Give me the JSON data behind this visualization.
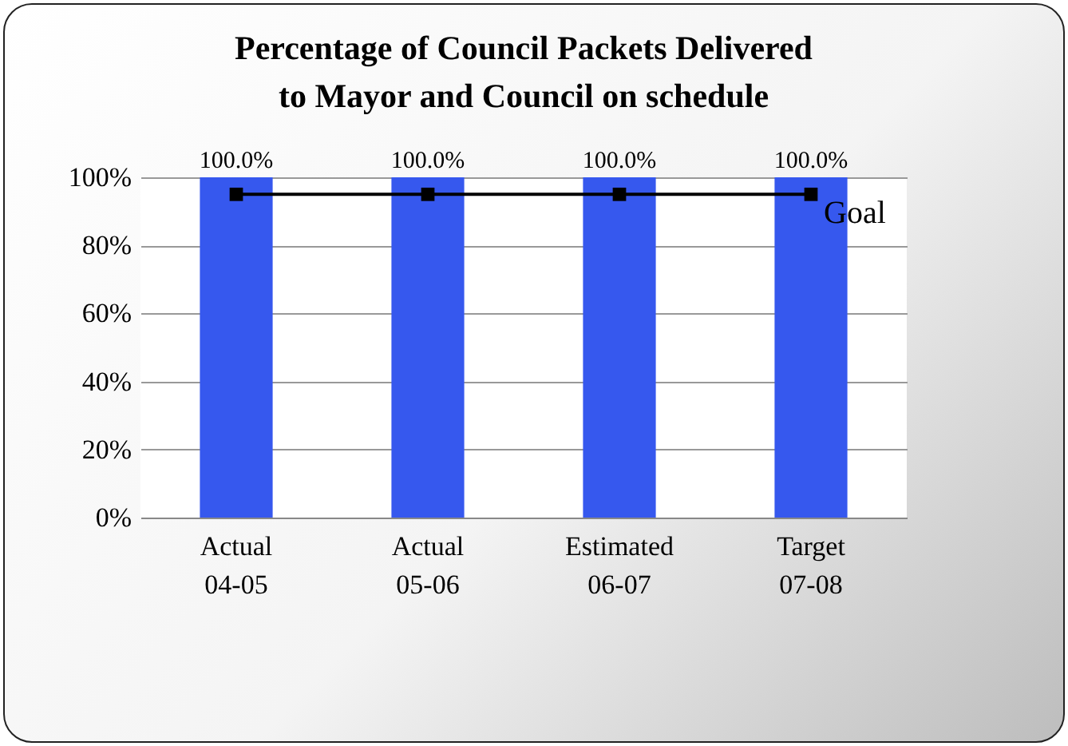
{
  "chart_data": {
    "type": "bar",
    "title": "Percentage of Council Packets Delivered to Mayor and Council on schedule",
    "categories": [
      "Actual\n04-05",
      "Actual\n05-06",
      "Estimated\n06-07",
      "Target\n07-08"
    ],
    "series": [
      {
        "color": "#3658ee",
        "values": [
          100,
          100,
          100,
          100
        ],
        "value_labels": [
          "100.0%",
          "100.0%",
          "100.0%",
          "100.0%"
        ]
      },
      {
        "type": "line",
        "name": "Goal",
        "color": "#000000",
        "values": [
          95,
          95,
          95,
          95
        ]
      }
    ],
    "ylim": [
      0,
      100
    ],
    "yticks": [
      {
        "value": 0,
        "label": "0%"
      },
      {
        "value": 20,
        "label": "20%"
      },
      {
        "value": 40,
        "label": "40%"
      },
      {
        "value": 60,
        "label": "60%"
      },
      {
        "value": 80,
        "label": "80%"
      },
      {
        "value": 100,
        "label": "100%"
      }
    ],
    "grid": "y",
    "marker": "square",
    "line_style": "solid",
    "legend": false
  }
}
